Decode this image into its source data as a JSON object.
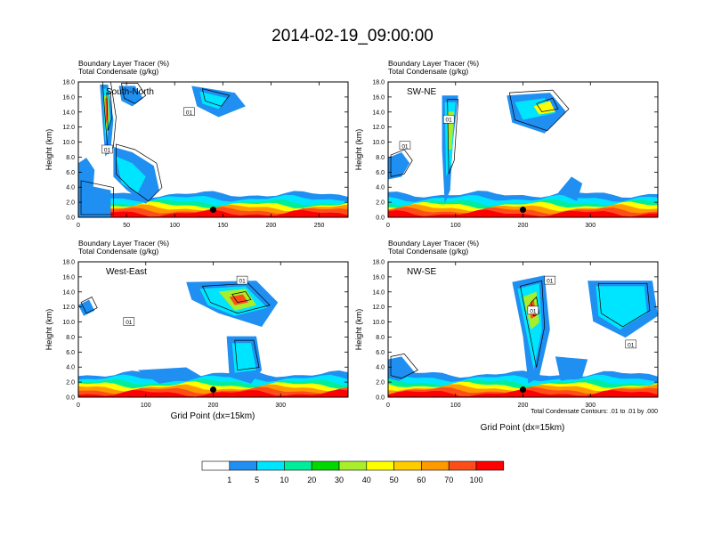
{
  "title": "2014-02-19_09:00:00",
  "ylabel": "Height (km)",
  "xlabel": "Grid Point (dx=15km)",
  "contour_note": "Total Condensate Contours: .01 to .01 by .000",
  "chart_data": [
    {
      "type": "heatmap",
      "subtitle_lines": [
        "Boundary Layer Tracer    (%)",
        "Total Condensate    (g/kg)"
      ],
      "panel_label": "South-North",
      "xlim": [
        0,
        280
      ],
      "xticks": [
        0,
        50,
        100,
        150,
        200,
        250
      ],
      "ylim": [
        0,
        18
      ],
      "yticks": [
        "0.0",
        "2.0",
        "4.0",
        "6.0",
        "8.0",
        "10.0",
        "12.0",
        "14.0",
        "16.0",
        "18.0"
      ],
      "contour_labels": [
        {
          "text": "01",
          "x": 30,
          "y": 9.0
        },
        {
          "text": "01",
          "x": 115,
          "y": 14.0
        }
      ],
      "marker": {
        "x": 140,
        "y": 1.0
      }
    },
    {
      "type": "heatmap",
      "subtitle_lines": [
        "Boundary Layer Tracer    (%)",
        "Total Condensate    (g/kg)"
      ],
      "panel_label": "SW-NE",
      "xlim": [
        0,
        400
      ],
      "xticks": [
        0,
        100,
        200,
        300
      ],
      "ylim": [
        0,
        18
      ],
      "yticks": [
        "0.0",
        "2.0",
        "4.0",
        "6.0",
        "8.0",
        "10.0",
        "12.0",
        "14.0",
        "16.0",
        "18.0"
      ],
      "contour_labels": [
        {
          "text": "01",
          "x": 25,
          "y": 9.5
        },
        {
          "text": "01",
          "x": 90,
          "y": 13.0
        }
      ],
      "marker": {
        "x": 200,
        "y": 1.0
      }
    },
    {
      "type": "heatmap",
      "subtitle_lines": [
        "Boundary Layer Tracer    (%)",
        "Total Condensate    (g/kg)"
      ],
      "panel_label": "West-East",
      "xlim": [
        0,
        400
      ],
      "xticks": [
        0,
        100,
        200,
        300
      ],
      "ylim": [
        0,
        18
      ],
      "yticks": [
        "0.0",
        "2.0",
        "4.0",
        "6.0",
        "8.0",
        "10.0",
        "12.0",
        "14.0",
        "16.0",
        "18.0"
      ],
      "contour_labels": [
        {
          "text": "01",
          "x": 75,
          "y": 10.0
        },
        {
          "text": "01",
          "x": 243,
          "y": 15.5
        }
      ],
      "marker": {
        "x": 200,
        "y": 1.0
      }
    },
    {
      "type": "heatmap",
      "subtitle_lines": [
        "Boundary Layer Tracer    (%)",
        "Total Condensate    (g/kg)"
      ],
      "panel_label": "NW-SE",
      "xlim": [
        0,
        400
      ],
      "xticks": [
        0,
        100,
        200,
        300
      ],
      "ylim": [
        0,
        18
      ],
      "yticks": [
        "0.0",
        "2.0",
        "4.0",
        "6.0",
        "8.0",
        "10.0",
        "12.0",
        "14.0",
        "16.0",
        "18.0"
      ],
      "contour_labels": [
        {
          "text": "01",
          "x": 240,
          "y": 15.5
        },
        {
          "text": "01",
          "x": 215,
          "y": 11.5
        },
        {
          "text": "01",
          "x": 360,
          "y": 7.0
        }
      ],
      "marker": {
        "x": 200,
        "y": 1.0
      }
    }
  ],
  "colorbar": {
    "labels": [
      "1",
      "5",
      "10",
      "20",
      "30",
      "40",
      "50",
      "60",
      "70",
      "100"
    ],
    "colors": [
      "#ffffff",
      "#1f8ff2",
      "#00e5ff",
      "#00ee9a",
      "#00d800",
      "#a8ee2a",
      "#ffff00",
      "#ffcc00",
      "#ff9900",
      "#ff4d1a",
      "#ff0000"
    ]
  }
}
